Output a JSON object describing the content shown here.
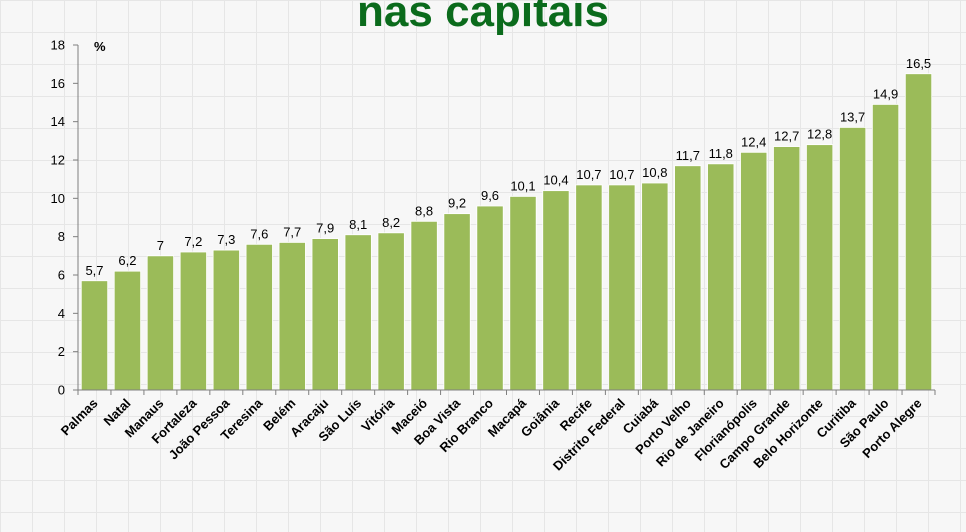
{
  "chart_data": {
    "type": "bar",
    "title": "nas capitais",
    "unit_label": "%",
    "xlabel": "",
    "ylabel": "",
    "ylim": [
      0,
      18
    ],
    "yticks": [
      0,
      2,
      4,
      6,
      8,
      10,
      12,
      14,
      16,
      18
    ],
    "grid": true,
    "bar_color": "#9bbb59",
    "title_color": "#0b6b1c",
    "categories": [
      "Palmas",
      "Natal",
      "Manaus",
      "Fortaleza",
      "João Pessoa",
      "Teresina",
      "Belém",
      "Aracaju",
      "São Luís",
      "Vitória",
      "Maceió",
      "Boa Vista",
      "Rio Branco",
      "Macapá",
      "Goiânia",
      "Recife",
      "Distrito Federal",
      "Cuiabá",
      "Porto Velho",
      "Rio de Janeiro",
      "Florianópolis",
      "Campo Grande",
      "Belo Horizonte",
      "Curitiba",
      "São Paulo",
      "Porto Alegre"
    ],
    "values": [
      5.7,
      6.2,
      7,
      7.2,
      7.3,
      7.6,
      7.7,
      7.9,
      8.1,
      8.2,
      8.8,
      9.2,
      9.6,
      10.1,
      10.4,
      10.7,
      10.7,
      10.8,
      11.7,
      11.8,
      12.4,
      12.7,
      12.8,
      13.7,
      14.9,
      16.5
    ],
    "data_labels": [
      "5,7",
      "6,2",
      "7",
      "7,2",
      "7,3",
      "7,6",
      "7,7",
      "7,9",
      "8,1",
      "8,2",
      "8,8",
      "9,2",
      "9,6",
      "10,1",
      "10,4",
      "10,7",
      "10,7",
      "10,8",
      "11,7",
      "11,8",
      "12,4",
      "12,7",
      "12,8",
      "13,7",
      "14,9",
      "16,5"
    ]
  }
}
